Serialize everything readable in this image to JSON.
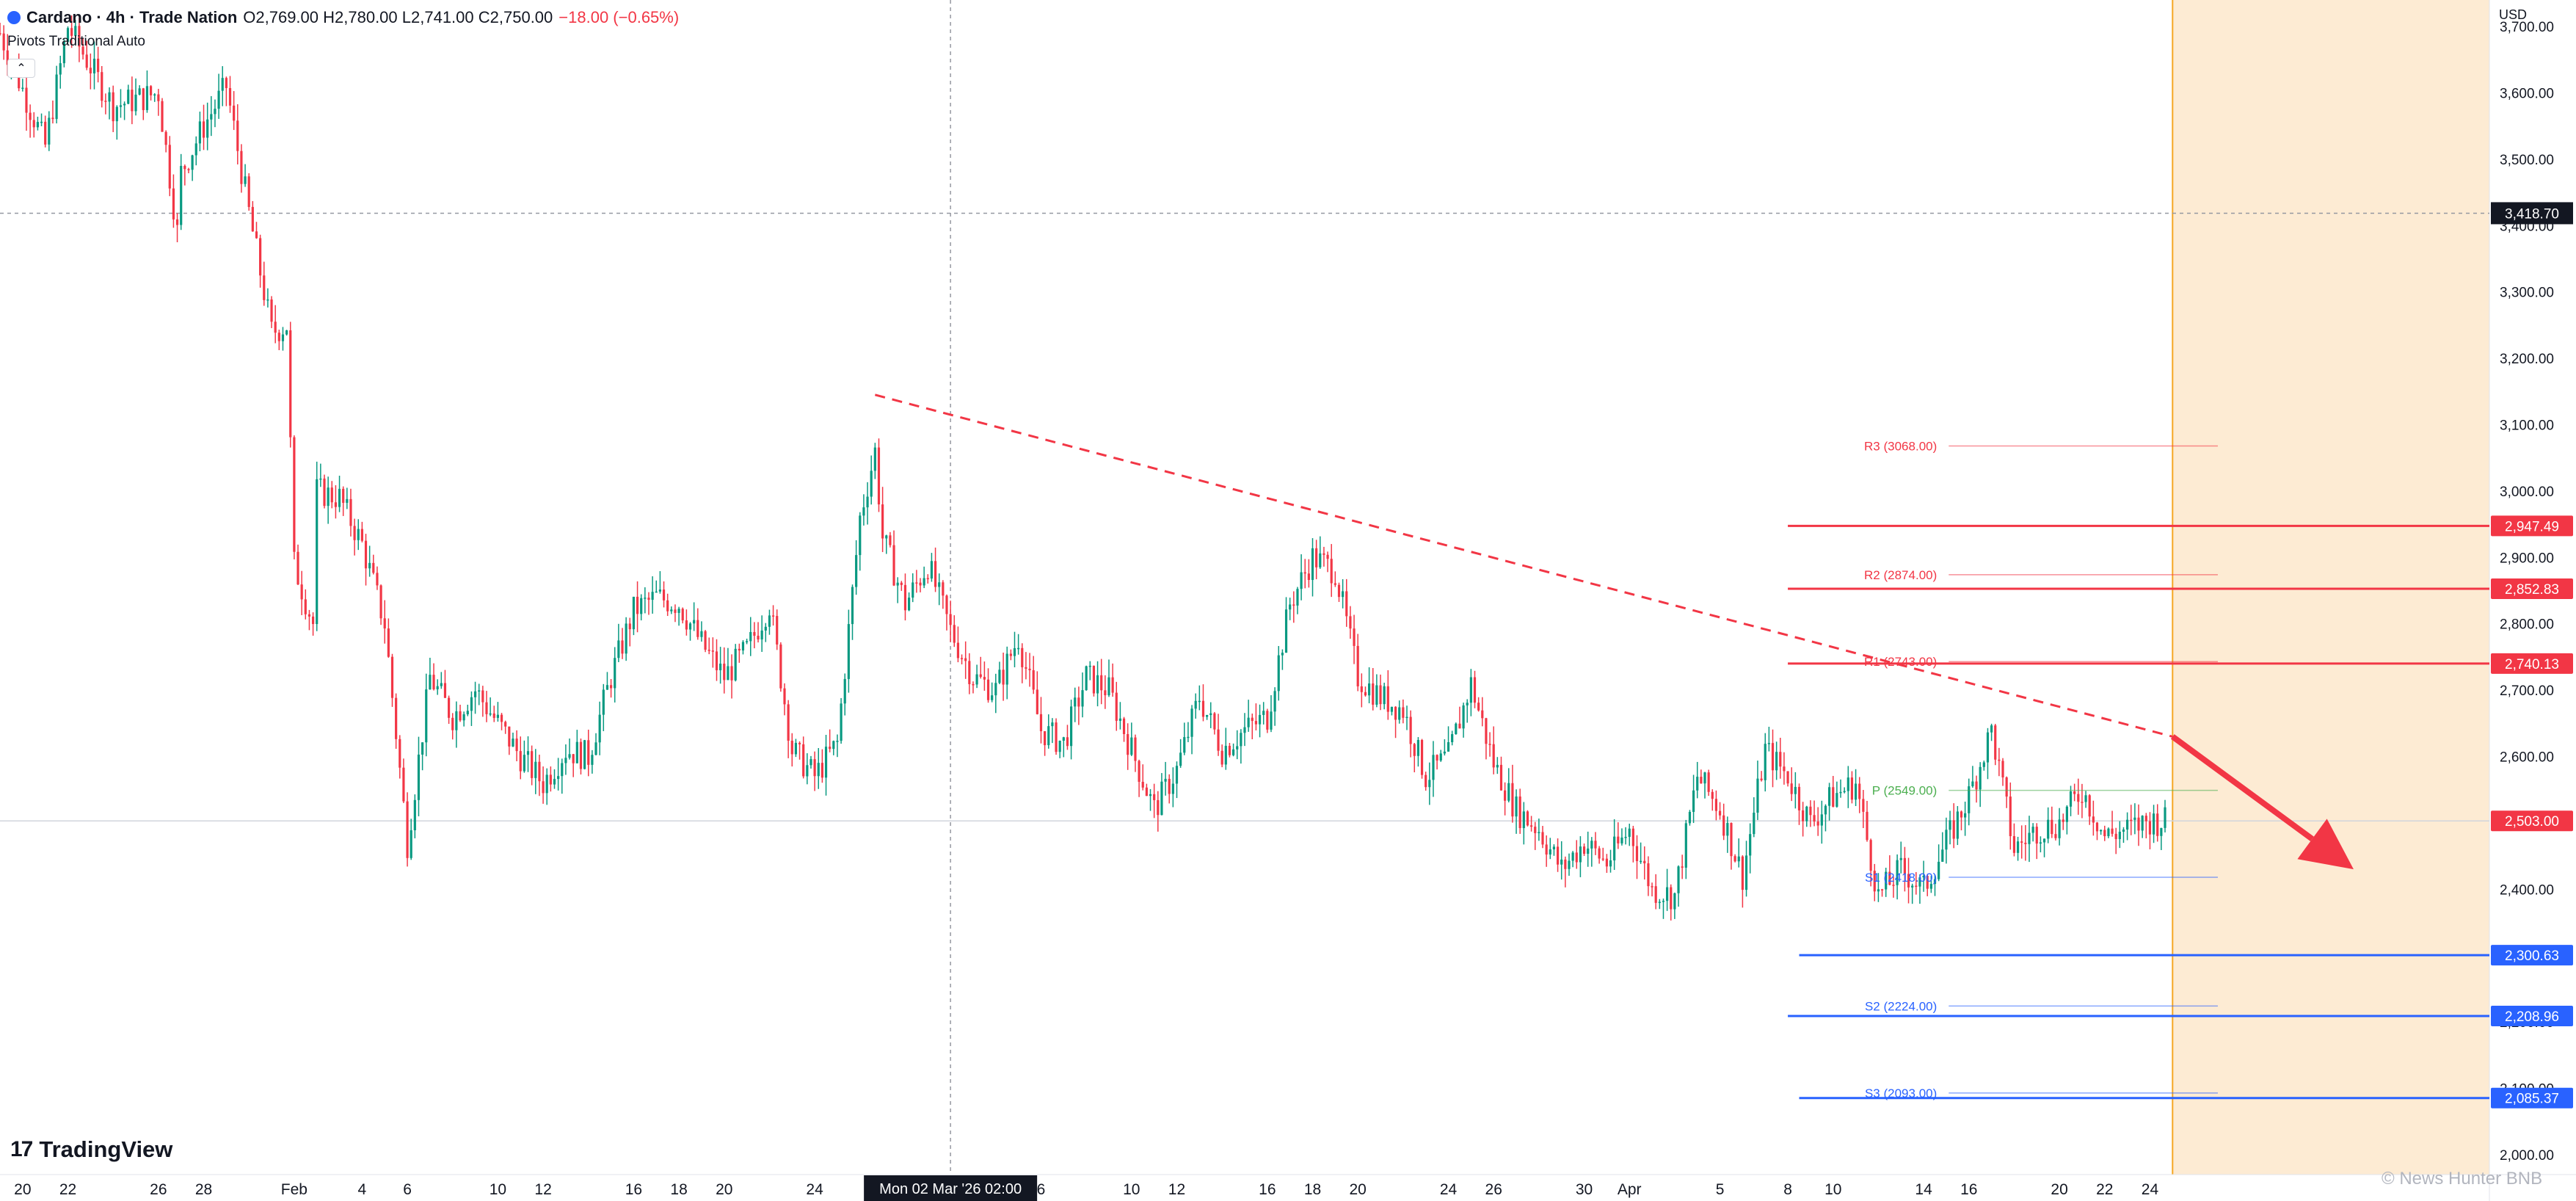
{
  "header": {
    "symbol_title": "Cardano · 4h · Trade Nation",
    "ohlc": "O2,769.00 H2,780.00 L2,741.00 C2,750.00",
    "change": "−18.00 (−0.65%)",
    "indicator": "Pivots Traditional Auto",
    "collapse_icon": "chevron-up-icon"
  },
  "branding": {
    "logo_text": "TradingView",
    "watermark": "© News Hunter BNB"
  },
  "colors": {
    "up": "#089981",
    "down": "#f23645",
    "resistance": "#f23645",
    "support": "#2962ff",
    "pivot": "#4caf50",
    "future_zone": "#fdebd3",
    "crosshair_label_bg": "#131722"
  },
  "chart_data": {
    "type": "candlestick",
    "currency": "USD",
    "ylim": [
      1970,
      3740
    ],
    "y_ticks": [
      2000,
      2100,
      2200,
      2300,
      2400,
      2500,
      2600,
      2700,
      2800,
      2900,
      3000,
      3100,
      3200,
      3300,
      3400,
      3500,
      3600,
      3700
    ],
    "y_tick_labels": [
      "2,000.00",
      "2,100.00",
      "2,200.00",
      "2,300.00",
      "2,400.00",
      "2,500.00",
      "2,600.00",
      "2,700.00",
      "2,800.00",
      "2,900.00",
      "3,000.00",
      "3,100.00",
      "3,200.00",
      "3,300.00",
      "3,400.00",
      "3,500.00",
      "3,600.00",
      "3,700.00"
    ],
    "x_ticks": [
      {
        "label": "20",
        "date": "2026-01-20"
      },
      {
        "label": "22",
        "date": "2026-01-22"
      },
      {
        "label": "26",
        "date": "2026-01-26"
      },
      {
        "label": "28",
        "date": "2026-01-28"
      },
      {
        "label": "Feb",
        "date": "2026-02-01"
      },
      {
        "label": "4",
        "date": "2026-02-04"
      },
      {
        "label": "6",
        "date": "2026-02-06"
      },
      {
        "label": "10",
        "date": "2026-02-10"
      },
      {
        "label": "12",
        "date": "2026-02-12"
      },
      {
        "label": "16",
        "date": "2026-02-16"
      },
      {
        "label": "18",
        "date": "2026-02-18"
      },
      {
        "label": "20",
        "date": "2026-02-20"
      },
      {
        "label": "24",
        "date": "2026-02-24"
      },
      {
        "label": "6",
        "date": "2026-03-06"
      },
      {
        "label": "10",
        "date": "2026-03-10"
      },
      {
        "label": "12",
        "date": "2026-03-12"
      },
      {
        "label": "16",
        "date": "2026-03-16"
      },
      {
        "label": "18",
        "date": "2026-03-18"
      },
      {
        "label": "20",
        "date": "2026-03-20"
      },
      {
        "label": "24",
        "date": "2026-03-24"
      },
      {
        "label": "26",
        "date": "2026-03-26"
      },
      {
        "label": "30",
        "date": "2026-03-30"
      },
      {
        "label": "Apr",
        "date": "2026-04-01"
      },
      {
        "label": "5",
        "date": "2026-04-05"
      },
      {
        "label": "8",
        "date": "2026-04-08"
      },
      {
        "label": "10",
        "date": "2026-04-10"
      },
      {
        "label": "14",
        "date": "2026-04-14"
      },
      {
        "label": "16",
        "date": "2026-04-16"
      },
      {
        "label": "20",
        "date": "2026-04-20"
      },
      {
        "label": "22",
        "date": "2026-04-22"
      },
      {
        "label": "24",
        "date": "2026-04-24"
      }
    ],
    "crosshair": {
      "x_date": "2026-03-02",
      "x_label": "Mon 02 Mar '26   02:00",
      "y_value": 3418.7,
      "y_label": "3,418.70"
    },
    "current_price": {
      "value": 2503.0,
      "label": "2,503.00"
    },
    "x_domain": [
      "2026-01-19",
      "2026-05-09"
    ],
    "last_candle_date": "2026-04-24",
    "waypoints": [
      {
        "date": "2026-01-19",
        "price": 3690
      },
      {
        "date": "2026-01-21",
        "price": 3520
      },
      {
        "date": "2026-01-22",
        "price": 3700
      },
      {
        "date": "2026-01-24",
        "price": 3580
      },
      {
        "date": "2026-01-26",
        "price": 3600
      },
      {
        "date": "2026-01-26T20:00",
        "price": 3390
      },
      {
        "date": "2026-01-27",
        "price": 3480
      },
      {
        "date": "2026-01-28",
        "price": 3550
      },
      {
        "date": "2026-01-29",
        "price": 3610
      },
      {
        "date": "2026-01-30",
        "price": 3420
      },
      {
        "date": "2026-01-31",
        "price": 3240
      },
      {
        "date": "2026-01-31T16:00",
        "price": 3250
      },
      {
        "date": "2026-02-01",
        "price": 2890
      },
      {
        "date": "2026-02-01T20:00",
        "price": 2800
      },
      {
        "date": "2026-02-02",
        "price": 3000
      },
      {
        "date": "2026-02-03",
        "price": 2990
      },
      {
        "date": "2026-02-04",
        "price": 2920
      },
      {
        "date": "2026-02-05",
        "price": 2800
      },
      {
        "date": "2026-02-06",
        "price": 2470
      },
      {
        "date": "2026-02-07",
        "price": 2720
      },
      {
        "date": "2026-02-08",
        "price": 2660
      },
      {
        "date": "2026-02-09",
        "price": 2700
      },
      {
        "date": "2026-02-10",
        "price": 2650
      },
      {
        "date": "2026-02-11",
        "price": 2600
      },
      {
        "date": "2026-02-12",
        "price": 2560
      },
      {
        "date": "2026-02-13",
        "price": 2610
      },
      {
        "date": "2026-02-14",
        "price": 2600
      },
      {
        "date": "2026-02-15",
        "price": 2720
      },
      {
        "date": "2026-02-16",
        "price": 2820
      },
      {
        "date": "2026-02-17",
        "price": 2840
      },
      {
        "date": "2026-02-18",
        "price": 2830
      },
      {
        "date": "2026-02-19",
        "price": 2770
      },
      {
        "date": "2026-02-20",
        "price": 2720
      },
      {
        "date": "2026-02-21",
        "price": 2760
      },
      {
        "date": "2026-02-22",
        "price": 2830
      },
      {
        "date": "2026-02-23",
        "price": 2610
      },
      {
        "date": "2026-02-24",
        "price": 2570
      },
      {
        "date": "2026-02-25",
        "price": 2620
      },
      {
        "date": "2026-02-26",
        "price": 2960
      },
      {
        "date": "2026-02-26T16:00",
        "price": 3060
      },
      {
        "date": "2026-02-27",
        "price": 2930
      },
      {
        "date": "2026-02-28",
        "price": 2830
      },
      {
        "date": "2026-03-01",
        "price": 2890
      },
      {
        "date": "2026-03-02",
        "price": 2790
      },
      {
        "date": "2026-03-03",
        "price": 2720
      },
      {
        "date": "2026-03-04",
        "price": 2700
      },
      {
        "date": "2026-03-05",
        "price": 2780
      },
      {
        "date": "2026-03-06",
        "price": 2640
      },
      {
        "date": "2026-03-07",
        "price": 2620
      },
      {
        "date": "2026-03-08",
        "price": 2720
      },
      {
        "date": "2026-03-09",
        "price": 2700
      },
      {
        "date": "2026-03-10",
        "price": 2610
      },
      {
        "date": "2026-03-11",
        "price": 2520
      },
      {
        "date": "2026-03-12",
        "price": 2580
      },
      {
        "date": "2026-03-13",
        "price": 2690
      },
      {
        "date": "2026-03-14",
        "price": 2610
      },
      {
        "date": "2026-03-15",
        "price": 2640
      },
      {
        "date": "2026-03-16",
        "price": 2660
      },
      {
        "date": "2026-03-17",
        "price": 2830
      },
      {
        "date": "2026-03-18",
        "price": 2900
      },
      {
        "date": "2026-03-19",
        "price": 2880
      },
      {
        "date": "2026-03-20",
        "price": 2720
      },
      {
        "date": "2026-03-21",
        "price": 2690
      },
      {
        "date": "2026-03-22",
        "price": 2670
      },
      {
        "date": "2026-03-23",
        "price": 2570
      },
      {
        "date": "2026-03-24",
        "price": 2600
      },
      {
        "date": "2026-03-25",
        "price": 2710
      },
      {
        "date": "2026-03-26",
        "price": 2590
      },
      {
        "date": "2026-03-27",
        "price": 2520
      },
      {
        "date": "2026-03-28",
        "price": 2490
      },
      {
        "date": "2026-03-29",
        "price": 2430
      },
      {
        "date": "2026-03-30",
        "price": 2470
      },
      {
        "date": "2026-03-31",
        "price": 2440
      },
      {
        "date": "2026-04-01",
        "price": 2490
      },
      {
        "date": "2026-04-02",
        "price": 2400
      },
      {
        "date": "2026-04-03",
        "price": 2390
      },
      {
        "date": "2026-04-04",
        "price": 2570
      },
      {
        "date": "2026-04-05",
        "price": 2520
      },
      {
        "date": "2026-04-06",
        "price": 2420
      },
      {
        "date": "2026-04-07",
        "price": 2610
      },
      {
        "date": "2026-04-08",
        "price": 2570
      },
      {
        "date": "2026-04-09",
        "price": 2500
      },
      {
        "date": "2026-04-10",
        "price": 2540
      },
      {
        "date": "2026-04-11",
        "price": 2560
      },
      {
        "date": "2026-04-12",
        "price": 2390
      },
      {
        "date": "2026-04-13",
        "price": 2430
      },
      {
        "date": "2026-04-14",
        "price": 2400
      },
      {
        "date": "2026-04-15",
        "price": 2470
      },
      {
        "date": "2026-04-16",
        "price": 2540
      },
      {
        "date": "2026-04-17",
        "price": 2640
      },
      {
        "date": "2026-04-18",
        "price": 2460
      },
      {
        "date": "2026-04-19",
        "price": 2490
      },
      {
        "date": "2026-04-20",
        "price": 2500
      },
      {
        "date": "2026-04-21",
        "price": 2550
      },
      {
        "date": "2026-04-22",
        "price": 2480
      },
      {
        "date": "2026-04-23",
        "price": 2490
      },
      {
        "date": "2026-04-24",
        "price": 2503
      }
    ],
    "pivots": {
      "start_date": "2026-04-19",
      "end_date": "2026-04-27",
      "levels": [
        {
          "name": "R3",
          "value": 3068.0,
          "label": "R3 (3068.00)",
          "kind": "resistance"
        },
        {
          "name": "R2",
          "value": 2874.0,
          "label": "R2 (2874.00)",
          "kind": "resistance"
        },
        {
          "name": "R1",
          "value": 2743.0,
          "label": "R1 (2743.00)",
          "kind": "resistance"
        },
        {
          "name": "P",
          "value": 2549.0,
          "label": "P (2549.00)",
          "kind": "pivot"
        },
        {
          "name": "S1",
          "value": 2418.0,
          "label": "S1 (2418.00)",
          "kind": "support"
        },
        {
          "name": "S2",
          "value": 2224.0,
          "label": "S2 (2224.00)",
          "kind": "support"
        },
        {
          "name": "S3",
          "value": 2093.0,
          "label": "S3 (2093.00)",
          "kind": "support"
        }
      ]
    },
    "horizontal_levels": [
      {
        "value": 2947.49,
        "label": "2,947.49",
        "kind": "resistance",
        "start_date": "2026-04-08"
      },
      {
        "value": 2852.83,
        "label": "2,852.83",
        "kind": "resistance",
        "start_date": "2026-04-08"
      },
      {
        "value": 2740.13,
        "label": "2,740.13",
        "kind": "resistance",
        "start_date": "2026-04-08"
      },
      {
        "value": 2300.63,
        "label": "2,300.63",
        "kind": "support",
        "start_date": "2026-04-08T12:00"
      },
      {
        "value": 2208.96,
        "label": "2,208.96",
        "kind": "support",
        "start_date": "2026-04-08"
      },
      {
        "value": 2085.37,
        "label": "2,085.37",
        "kind": "support",
        "start_date": "2026-04-08T12:00"
      }
    ],
    "trendline": {
      "from": {
        "date": "2026-02-26T16:00",
        "price": 3145
      },
      "to": {
        "date": "2026-04-25",
        "price": 2630
      }
    },
    "projection_arrow": {
      "from": {
        "date": "2026-04-25",
        "price": 2630
      },
      "to": {
        "date": "2026-05-03",
        "price": 2430
      }
    },
    "future_zone_start": "2026-04-25"
  }
}
